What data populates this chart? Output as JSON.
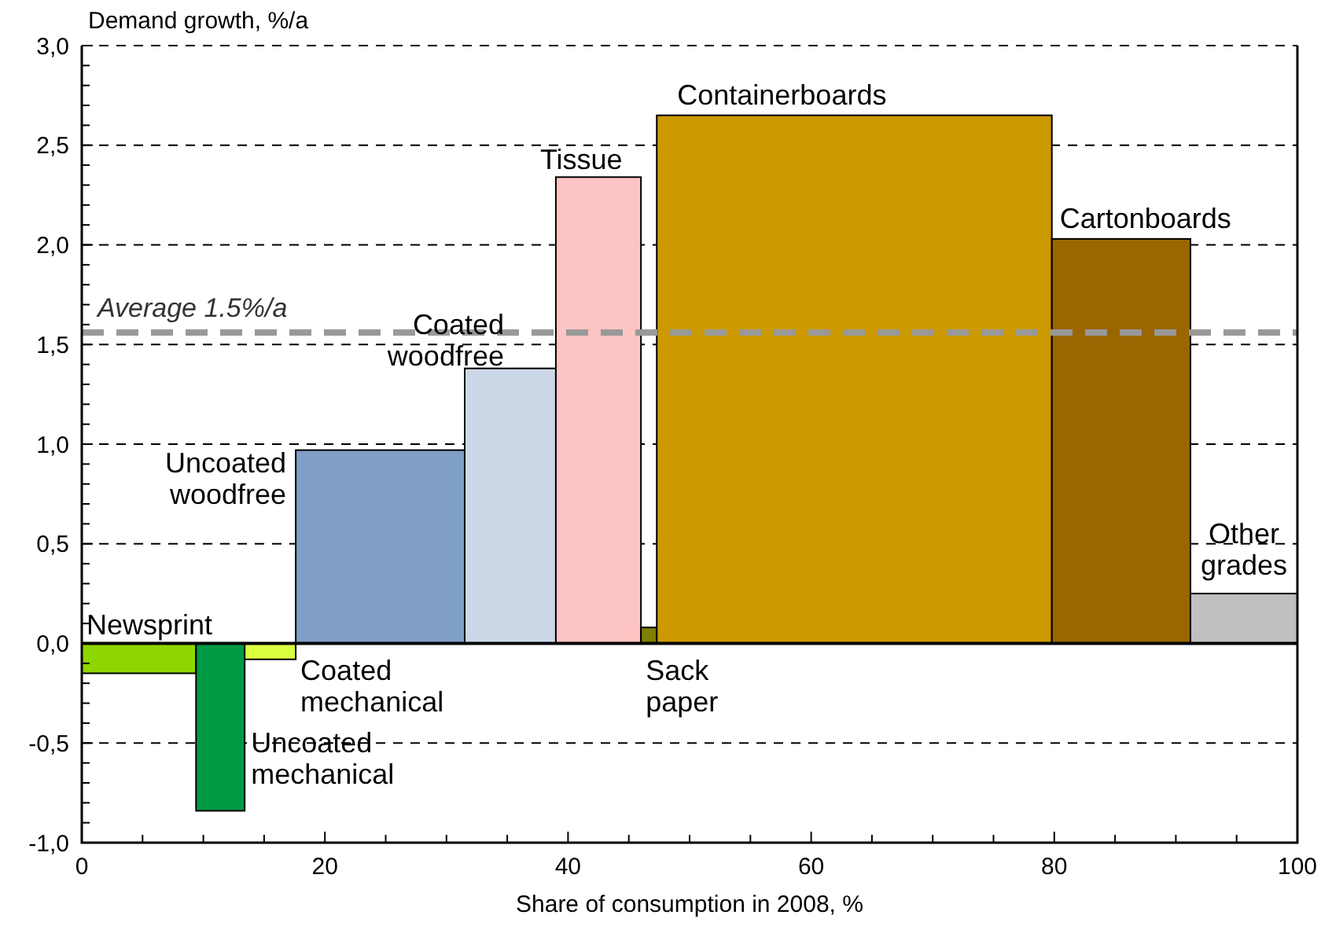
{
  "chart_data": {
    "type": "histogram",
    "xlabel": "Share of consumption in 2008, %",
    "ylabel": "Demand growth, %/a",
    "bins": [
      0,
      9.4,
      13.4,
      17.6,
      31.5,
      39.0,
      46.0,
      47.3,
      79.8,
      91.2,
      100
    ],
    "values": [
      -0.15,
      -0.84,
      -0.08,
      0.97,
      1.38,
      2.34,
      0.08,
      2.65,
      2.03,
      0.25
    ],
    "colors": [
      "#8ed600",
      "#009a44",
      "#d9ff3f",
      "#7f9fc6",
      "#ccd8e8",
      "#fcc4c2",
      "#807f00",
      "#cc9900",
      "#996600",
      "#c0c0c0"
    ],
    "xlim": [
      0,
      100
    ],
    "xticks": [
      0,
      {
        "value": 5,
        "label": null
      },
      {
        "value": 10,
        "label": null
      },
      {
        "value": 15,
        "label": null
      },
      20,
      {
        "value": 25,
        "label": null
      },
      {
        "value": 30,
        "label": null
      },
      {
        "value": 35,
        "label": null
      },
      40,
      {
        "value": 45,
        "label": null
      },
      {
        "value": 50,
        "label": null
      },
      {
        "value": 55,
        "label": null
      },
      60,
      {
        "value": 65,
        "label": null
      },
      {
        "value": 70,
        "label": null
      },
      {
        "value": 75,
        "label": null
      },
      80,
      {
        "value": 85,
        "label": null
      },
      {
        "value": 90,
        "label": null
      },
      {
        "value": 95,
        "label": null
      },
      100
    ],
    "ylim": [
      -1,
      3
    ],
    "yticks": [
      {
        "value": -1,
        "label": "-1,0"
      },
      {
        "value": -0.9,
        "label": null
      },
      {
        "value": -0.8,
        "label": null
      },
      {
        "value": -0.7,
        "label": null
      },
      {
        "value": -0.6,
        "label": null
      },
      {
        "value": -0.5,
        "label": "-0,5"
      },
      {
        "value": -0.4,
        "label": null
      },
      {
        "value": -0.3,
        "label": null
      },
      {
        "value": -0.2,
        "label": null
      },
      {
        "value": -0.1,
        "label": null
      },
      {
        "value": 0,
        "label": "0,0"
      },
      {
        "value": 0.1,
        "label": null
      },
      {
        "value": 0.2,
        "label": null
      },
      {
        "value": 0.3,
        "label": null
      },
      {
        "value": 0.4,
        "label": null
      },
      {
        "value": 0.5,
        "label": "0,5"
      },
      {
        "value": 0.6,
        "label": null
      },
      {
        "value": 0.7,
        "label": null
      },
      {
        "value": 0.8,
        "label": null
      },
      {
        "value": 0.9,
        "label": null
      },
      {
        "value": 1,
        "label": "1,0"
      },
      {
        "value": 1.1,
        "label": null
      },
      {
        "value": 1.2,
        "label": null
      },
      {
        "value": 1.3,
        "label": null
      },
      {
        "value": 1.4,
        "label": null
      },
      {
        "value": 1.5,
        "label": "1,5"
      },
      {
        "value": 1.6,
        "label": null
      },
      {
        "value": 1.7,
        "label": null
      },
      {
        "value": 1.8,
        "label": null
      },
      {
        "value": 1.9,
        "label": null
      },
      {
        "value": 2,
        "label": "2,0"
      },
      {
        "value": 2.1,
        "label": null
      },
      {
        "value": 2.2,
        "label": null
      },
      {
        "value": 2.3,
        "label": null
      },
      {
        "value": 2.4,
        "label": null
      },
      {
        "value": 2.5,
        "label": "2,5"
      },
      {
        "value": 2.6,
        "label": null
      },
      {
        "value": 2.7,
        "label": null
      },
      {
        "value": 2.8,
        "label": null
      },
      {
        "value": 2.9,
        "label": null
      },
      {
        "value": 3,
        "label": "3,0"
      }
    ],
    "grid": "y",
    "ref_lines": [
      {
        "axis": "y",
        "value": 1.56,
        "label": "Average 1.5%/a",
        "color": "#999999",
        "line_style": "dashed"
      }
    ],
    "annotations": [
      "Newsprint",
      "Uncoated\nmechanical",
      "Coated\nmechanical",
      "Uncoated\nwoodfree",
      "Coated\nwoodfree",
      "Tissue",
      "Sack\npaper",
      "Containerboards",
      "Cartonboards",
      "Other\ngrades"
    ]
  }
}
